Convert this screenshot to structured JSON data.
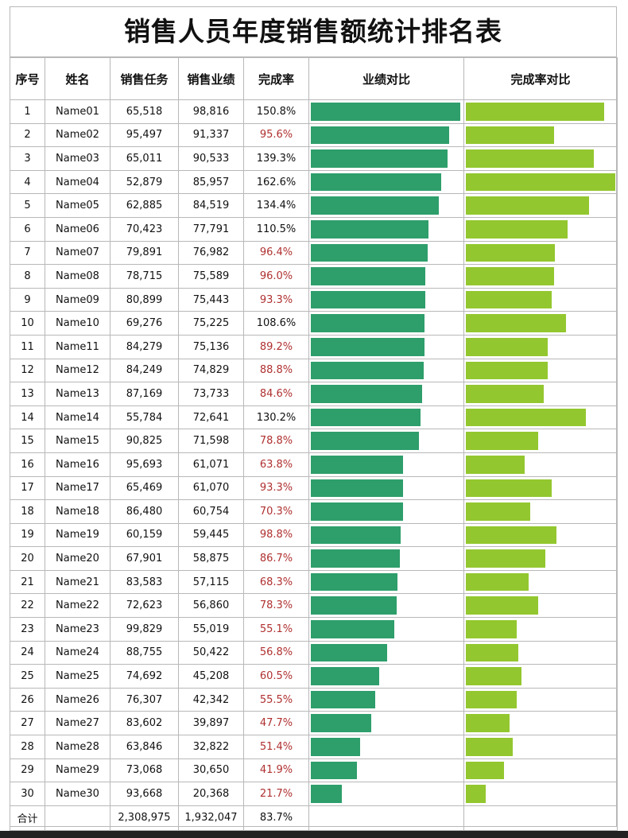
{
  "title": "销售人员年度销售额统计排名表",
  "headers": [
    "序号",
    "姓名",
    "销售任务",
    "销售业绩",
    "完成率",
    "业绩对比",
    "完成率对比"
  ],
  "colors": {
    "sales_bar": "#2e9e6b",
    "rate_bar": "#93c72f",
    "low_rate_text": "#b03030"
  },
  "rows": [
    {
      "no": "1",
      "name": "Name01",
      "target": "65,518",
      "sales": "98,816",
      "rate": "150.8%"
    },
    {
      "no": "2",
      "name": "Name02",
      "target": "95,497",
      "sales": "91,337",
      "rate": "95.6%"
    },
    {
      "no": "3",
      "name": "Name03",
      "target": "65,011",
      "sales": "90,533",
      "rate": "139.3%"
    },
    {
      "no": "4",
      "name": "Name04",
      "target": "52,879",
      "sales": "85,957",
      "rate": "162.6%"
    },
    {
      "no": "5",
      "name": "Name05",
      "target": "62,885",
      "sales": "84,519",
      "rate": "134.4%"
    },
    {
      "no": "6",
      "name": "Name06",
      "target": "70,423",
      "sales": "77,791",
      "rate": "110.5%"
    },
    {
      "no": "7",
      "name": "Name07",
      "target": "79,891",
      "sales": "76,982",
      "rate": "96.4%"
    },
    {
      "no": "8",
      "name": "Name08",
      "target": "78,715",
      "sales": "75,589",
      "rate": "96.0%"
    },
    {
      "no": "9",
      "name": "Name09",
      "target": "80,899",
      "sales": "75,443",
      "rate": "93.3%"
    },
    {
      "no": "10",
      "name": "Name10",
      "target": "69,276",
      "sales": "75,225",
      "rate": "108.6%"
    },
    {
      "no": "11",
      "name": "Name11",
      "target": "84,279",
      "sales": "75,136",
      "rate": "89.2%"
    },
    {
      "no": "12",
      "name": "Name12",
      "target": "84,249",
      "sales": "74,829",
      "rate": "88.8%"
    },
    {
      "no": "13",
      "name": "Name13",
      "target": "87,169",
      "sales": "73,733",
      "rate": "84.6%"
    },
    {
      "no": "14",
      "name": "Name14",
      "target": "55,784",
      "sales": "72,641",
      "rate": "130.2%"
    },
    {
      "no": "15",
      "name": "Name15",
      "target": "90,825",
      "sales": "71,598",
      "rate": "78.8%"
    },
    {
      "no": "16",
      "name": "Name16",
      "target": "95,693",
      "sales": "61,071",
      "rate": "63.8%"
    },
    {
      "no": "17",
      "name": "Name17",
      "target": "65,469",
      "sales": "61,070",
      "rate": "93.3%"
    },
    {
      "no": "18",
      "name": "Name18",
      "target": "86,480",
      "sales": "60,754",
      "rate": "70.3%"
    },
    {
      "no": "19",
      "name": "Name19",
      "target": "60,159",
      "sales": "59,445",
      "rate": "98.8%"
    },
    {
      "no": "20",
      "name": "Name20",
      "target": "67,901",
      "sales": "58,875",
      "rate": "86.7%"
    },
    {
      "no": "21",
      "name": "Name21",
      "target": "83,583",
      "sales": "57,115",
      "rate": "68.3%"
    },
    {
      "no": "22",
      "name": "Name22",
      "target": "72,623",
      "sales": "56,860",
      "rate": "78.3%"
    },
    {
      "no": "23",
      "name": "Name23",
      "target": "99,829",
      "sales": "55,019",
      "rate": "55.1%"
    },
    {
      "no": "24",
      "name": "Name24",
      "target": "88,755",
      "sales": "50,422",
      "rate": "56.8%"
    },
    {
      "no": "25",
      "name": "Name25",
      "target": "74,692",
      "sales": "45,208",
      "rate": "60.5%"
    },
    {
      "no": "26",
      "name": "Name26",
      "target": "76,307",
      "sales": "42,342",
      "rate": "55.5%"
    },
    {
      "no": "27",
      "name": "Name27",
      "target": "83,602",
      "sales": "39,897",
      "rate": "47.7%"
    },
    {
      "no": "28",
      "name": "Name28",
      "target": "63,846",
      "sales": "32,822",
      "rate": "51.4%"
    },
    {
      "no": "29",
      "name": "Name29",
      "target": "73,068",
      "sales": "30,650",
      "rate": "41.9%"
    },
    {
      "no": "30",
      "name": "Name30",
      "target": "93,668",
      "sales": "20,368",
      "rate": "21.7%"
    }
  ],
  "total": {
    "label": "合计",
    "target": "2,308,975",
    "sales": "1,932,047",
    "rate": "83.7%"
  }
}
